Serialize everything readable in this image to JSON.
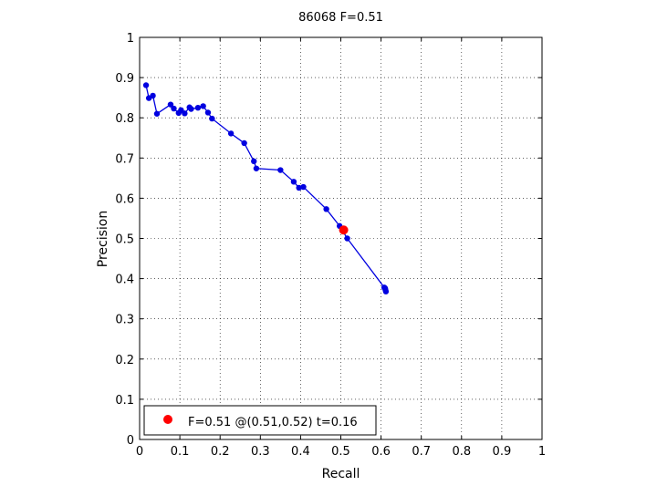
{
  "chart_data": {
    "type": "line",
    "title": "86068 F=0.51",
    "xlabel": "Recall",
    "ylabel": "Precision",
    "xlim": [
      0,
      1
    ],
    "ylim": [
      0,
      1
    ],
    "grid": true,
    "xticks": [
      "0",
      "0.1",
      "0.2",
      "0.3",
      "0.4",
      "0.5",
      "0.6",
      "0.7",
      "0.8",
      "0.9",
      "1"
    ],
    "yticks": [
      "0",
      "0.1",
      "0.2",
      "0.3",
      "0.4",
      "0.5",
      "0.6",
      "0.7",
      "0.8",
      "0.9",
      "1"
    ],
    "series": [
      {
        "color": "#0000e0",
        "points": [
          [
            0.612,
            0.368
          ],
          [
            0.611,
            0.372
          ],
          [
            0.61,
            0.376
          ],
          [
            0.608,
            0.378
          ],
          [
            0.516,
            0.5
          ],
          [
            0.497,
            0.531
          ],
          [
            0.464,
            0.573
          ],
          [
            0.407,
            0.628
          ],
          [
            0.396,
            0.626
          ],
          [
            0.383,
            0.641
          ],
          [
            0.35,
            0.67
          ],
          [
            0.29,
            0.674
          ],
          [
            0.284,
            0.692
          ],
          [
            0.26,
            0.737
          ],
          [
            0.227,
            0.761
          ],
          [
            0.18,
            0.798
          ],
          [
            0.17,
            0.813
          ],
          [
            0.158,
            0.829
          ],
          [
            0.145,
            0.825
          ],
          [
            0.128,
            0.822
          ],
          [
            0.124,
            0.826
          ],
          [
            0.112,
            0.811
          ],
          [
            0.103,
            0.819
          ],
          [
            0.097,
            0.812
          ],
          [
            0.085,
            0.823
          ],
          [
            0.077,
            0.833
          ],
          [
            0.043,
            0.81
          ],
          [
            0.033,
            0.855
          ],
          [
            0.023,
            0.849
          ],
          [
            0.016,
            0.881
          ]
        ]
      }
    ],
    "highlight": {
      "x": 0.507,
      "y": 0.521,
      "color": "#ff0000"
    },
    "legend": {
      "position": "bottom-left",
      "entries": [
        "F=0.51 @(0.51,0.52) t=0.16"
      ]
    }
  }
}
